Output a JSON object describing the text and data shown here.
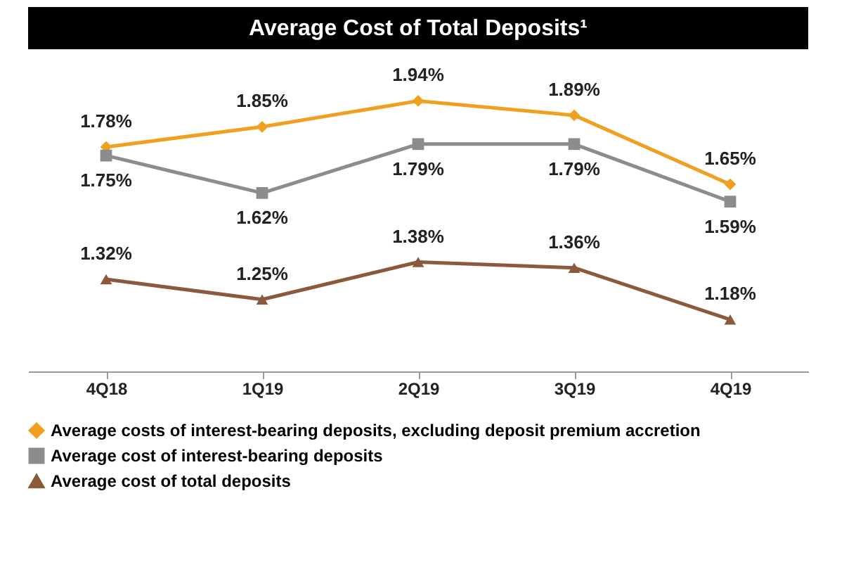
{
  "chart_data": {
    "type": "line",
    "title": "Average Cost of Total Deposits¹",
    "categories": [
      "4Q18",
      "1Q19",
      "2Q19",
      "3Q19",
      "4Q19"
    ],
    "series": [
      {
        "name": "Average costs of interest-bearing deposits, excluding deposit premium accretion",
        "color": "#f0a020",
        "marker": "diamond",
        "values": [
          1.78,
          1.85,
          1.94,
          1.89,
          1.65
        ],
        "value_labels": [
          "1.78%",
          "1.85%",
          "1.94%",
          "1.89%",
          "1.65%"
        ]
      },
      {
        "name": "Average cost of interest-bearing deposits",
        "color": "#8c8c8c",
        "marker": "square",
        "values": [
          1.75,
          1.62,
          1.79,
          1.79,
          1.59
        ],
        "value_labels": [
          "1.75%",
          "1.62%",
          "1.79%",
          "1.79%",
          "1.59%"
        ]
      },
      {
        "name": "Average cost of total deposits",
        "color": "#8b5a3c",
        "marker": "triangle",
        "values": [
          1.32,
          1.25,
          1.38,
          1.36,
          1.18
        ],
        "value_labels": [
          "1.32%",
          "1.25%",
          "1.38%",
          "1.36%",
          "1.18%"
        ]
      }
    ],
    "legend": "bottom",
    "grid": false
  }
}
